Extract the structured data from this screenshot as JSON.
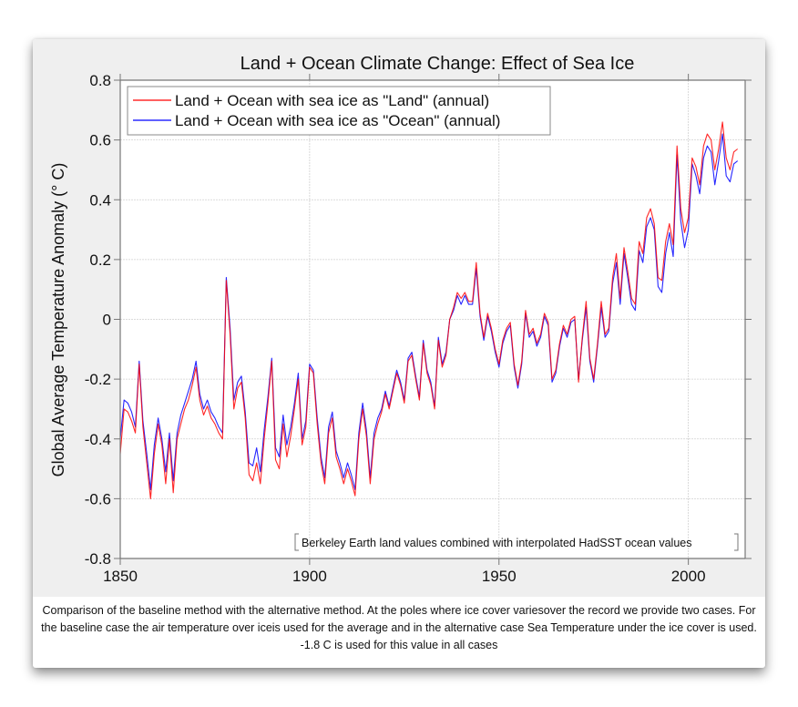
{
  "caption": "Comparison of the baseline method with the alternative method. At the poles where ice cover variesover the record we provide two cases. For the baseline case the air temperature over iceis used for the average and in the alternative case Sea Temperature under the ice cover is used. -1.8 C is used for this value in all cases",
  "chart_data": {
    "type": "line",
    "title": "Land + Ocean Climate Change: Effect of Sea Ice",
    "xlabel": "",
    "ylabel": "Global Average Temperature Anomaly (° C)",
    "xlim": [
      1850,
      2015
    ],
    "ylim": [
      -0.8,
      0.8
    ],
    "xticks": [
      1850,
      1900,
      1950,
      2000
    ],
    "xtick_labels": [
      "1850",
      "1900",
      "1950",
      "2000"
    ],
    "yticks": [
      -0.8,
      -0.6,
      -0.4,
      -0.2,
      0,
      0.2,
      0.4,
      0.6,
      0.8
    ],
    "ytick_labels": [
      "-0.8",
      "-0.6",
      "-0.4",
      "-0.2",
      "0",
      "0.2",
      "0.4",
      "0.6",
      "0.8"
    ],
    "grid": true,
    "legend_position": "top-left",
    "annotation": "Berkeley Earth land values combined with interpolated HadSST ocean values",
    "annotation_position": "bottom-right",
    "x": [
      1850,
      1851,
      1852,
      1853,
      1854,
      1855,
      1856,
      1857,
      1858,
      1859,
      1860,
      1861,
      1862,
      1863,
      1864,
      1865,
      1866,
      1867,
      1868,
      1869,
      1870,
      1871,
      1872,
      1873,
      1874,
      1875,
      1876,
      1877,
      1878,
      1879,
      1880,
      1881,
      1882,
      1883,
      1884,
      1885,
      1886,
      1887,
      1888,
      1889,
      1890,
      1891,
      1892,
      1893,
      1894,
      1895,
      1896,
      1897,
      1898,
      1899,
      1900,
      1901,
      1902,
      1903,
      1904,
      1905,
      1906,
      1907,
      1908,
      1909,
      1910,
      1911,
      1912,
      1913,
      1914,
      1915,
      1916,
      1917,
      1918,
      1919,
      1920,
      1921,
      1922,
      1923,
      1924,
      1925,
      1926,
      1927,
      1928,
      1929,
      1930,
      1931,
      1932,
      1933,
      1934,
      1935,
      1936,
      1937,
      1938,
      1939,
      1940,
      1941,
      1942,
      1943,
      1944,
      1945,
      1946,
      1947,
      1948,
      1949,
      1950,
      1951,
      1952,
      1953,
      1954,
      1955,
      1956,
      1957,
      1958,
      1959,
      1960,
      1961,
      1962,
      1963,
      1964,
      1965,
      1966,
      1967,
      1968,
      1969,
      1970,
      1971,
      1972,
      1973,
      1974,
      1975,
      1976,
      1977,
      1978,
      1979,
      1980,
      1981,
      1982,
      1983,
      1984,
      1985,
      1986,
      1987,
      1988,
      1989,
      1990,
      1991,
      1992,
      1993,
      1994,
      1995,
      1996,
      1997,
      1998,
      1999,
      2000,
      2001,
      2002,
      2003,
      2004,
      2005,
      2006,
      2007,
      2008,
      2009,
      2010,
      2011,
      2012,
      2013
    ],
    "series": [
      {
        "name": "Land + Ocean with sea ice as \"Land\" (annual)",
        "color": "#ff0000",
        "values": [
          -0.45,
          -0.3,
          -0.31,
          -0.34,
          -0.38,
          -0.15,
          -0.36,
          -0.48,
          -0.6,
          -0.45,
          -0.35,
          -0.42,
          -0.55,
          -0.4,
          -0.58,
          -0.4,
          -0.35,
          -0.3,
          -0.27,
          -0.22,
          -0.16,
          -0.27,
          -0.32,
          -0.29,
          -0.33,
          -0.35,
          -0.38,
          -0.4,
          0.13,
          -0.05,
          -0.3,
          -0.23,
          -0.21,
          -0.33,
          -0.52,
          -0.54,
          -0.48,
          -0.55,
          -0.4,
          -0.28,
          -0.14,
          -0.47,
          -0.5,
          -0.35,
          -0.46,
          -0.39,
          -0.3,
          -0.2,
          -0.42,
          -0.36,
          -0.16,
          -0.18,
          -0.35,
          -0.48,
          -0.55,
          -0.38,
          -0.33,
          -0.46,
          -0.5,
          -0.55,
          -0.5,
          -0.54,
          -0.59,
          -0.4,
          -0.3,
          -0.39,
          -0.55,
          -0.4,
          -0.35,
          -0.31,
          -0.25,
          -0.3,
          -0.24,
          -0.18,
          -0.22,
          -0.28,
          -0.14,
          -0.12,
          -0.2,
          -0.27,
          -0.08,
          -0.18,
          -0.22,
          -0.3,
          -0.07,
          -0.16,
          -0.12,
          0.0,
          0.04,
          0.09,
          0.07,
          0.09,
          0.06,
          0.06,
          0.19,
          0.02,
          -0.06,
          0.02,
          -0.03,
          -0.1,
          -0.15,
          -0.07,
          -0.03,
          -0.01,
          -0.15,
          -0.22,
          -0.14,
          0.03,
          -0.05,
          -0.03,
          -0.08,
          -0.05,
          0.02,
          -0.01,
          -0.2,
          -0.17,
          -0.08,
          -0.02,
          -0.05,
          0.0,
          0.01,
          -0.21,
          -0.06,
          0.06,
          -0.13,
          -0.2,
          -0.08,
          0.06,
          -0.05,
          -0.03,
          0.14,
          0.22,
          0.07,
          0.24,
          0.16,
          0.07,
          0.05,
          0.26,
          0.22,
          0.34,
          0.37,
          0.32,
          0.14,
          0.13,
          0.26,
          0.32,
          0.25,
          0.58,
          0.37,
          0.29,
          0.34,
          0.54,
          0.51,
          0.45,
          0.58,
          0.62,
          0.6,
          0.5,
          0.57,
          0.66,
          0.54,
          0.5,
          0.56,
          0.57
        ]
      },
      {
        "name": "Land + Ocean with sea ice as \"Ocean\" (annual)",
        "color": "#0000ff",
        "values": [
          -0.4,
          -0.27,
          -0.28,
          -0.31,
          -0.36,
          -0.14,
          -0.34,
          -0.45,
          -0.57,
          -0.42,
          -0.33,
          -0.4,
          -0.51,
          -0.38,
          -0.54,
          -0.38,
          -0.32,
          -0.28,
          -0.24,
          -0.2,
          -0.14,
          -0.25,
          -0.3,
          -0.27,
          -0.31,
          -0.33,
          -0.36,
          -0.38,
          0.14,
          -0.03,
          -0.27,
          -0.21,
          -0.19,
          -0.31,
          -0.48,
          -0.49,
          -0.43,
          -0.51,
          -0.37,
          -0.26,
          -0.13,
          -0.43,
          -0.46,
          -0.32,
          -0.42,
          -0.36,
          -0.28,
          -0.18,
          -0.4,
          -0.34,
          -0.15,
          -0.17,
          -0.33,
          -0.46,
          -0.53,
          -0.36,
          -0.31,
          -0.44,
          -0.48,
          -0.53,
          -0.48,
          -0.52,
          -0.57,
          -0.38,
          -0.28,
          -0.37,
          -0.53,
          -0.38,
          -0.33,
          -0.3,
          -0.24,
          -0.29,
          -0.23,
          -0.17,
          -0.21,
          -0.27,
          -0.13,
          -0.11,
          -0.19,
          -0.26,
          -0.07,
          -0.17,
          -0.21,
          -0.29,
          -0.06,
          -0.15,
          -0.11,
          0.0,
          0.03,
          0.08,
          0.05,
          0.08,
          0.05,
          0.05,
          0.17,
          0.01,
          -0.07,
          0.01,
          -0.04,
          -0.11,
          -0.16,
          -0.08,
          -0.04,
          -0.02,
          -0.16,
          -0.23,
          -0.15,
          0.02,
          -0.06,
          -0.04,
          -0.09,
          -0.06,
          0.01,
          -0.02,
          -0.21,
          -0.18,
          -0.09,
          -0.03,
          -0.06,
          -0.01,
          0.0,
          -0.2,
          -0.07,
          0.04,
          -0.14,
          -0.21,
          -0.09,
          0.04,
          -0.06,
          -0.04,
          0.12,
          0.19,
          0.05,
          0.22,
          0.14,
          0.05,
          0.03,
          0.23,
          0.19,
          0.31,
          0.34,
          0.3,
          0.11,
          0.09,
          0.22,
          0.29,
          0.21,
          0.55,
          0.33,
          0.24,
          0.3,
          0.52,
          0.48,
          0.42,
          0.54,
          0.58,
          0.56,
          0.45,
          0.53,
          0.62,
          0.48,
          0.46,
          0.52,
          0.53
        ]
      }
    ]
  }
}
